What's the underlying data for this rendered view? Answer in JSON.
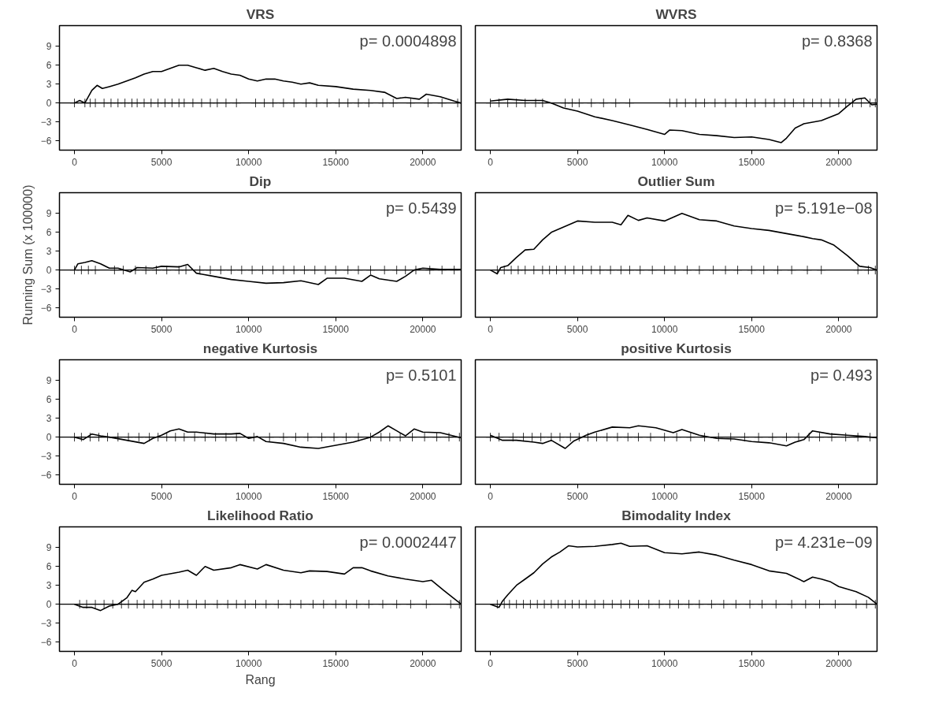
{
  "chart_data": [
    {
      "type": "line",
      "title": "VRS",
      "marker": "cross",
      "annotations": [
        "p= 0.0004898"
      ],
      "xlim": [
        -860,
        22200
      ],
      "ylim": [
        -7.5,
        12.3
      ],
      "xticks": [
        0,
        5000,
        10000,
        15000,
        20000
      ],
      "yticks": [
        -6,
        -3,
        0,
        3,
        6,
        9
      ],
      "ref_lines": [
        {
          "axis": "y",
          "value": 0
        }
      ],
      "series": [
        {
          "color": "#000000",
          "marker": "none",
          "x": [
            0,
            300,
            600,
            800,
            1000,
            1300,
            1600,
            2000,
            2500,
            3000,
            3500,
            4000,
            4500,
            5000,
            5500,
            6000,
            6500,
            7000,
            7500,
            8000,
            8500,
            9000,
            9500,
            10000,
            10500,
            11000,
            11500,
            12000,
            12500,
            13000,
            13500,
            14000,
            15000,
            16000,
            17000,
            17800,
            18500,
            19000,
            19800,
            20200,
            21000,
            21800,
            22200
          ],
          "values": [
            0,
            0.4,
            0,
            1,
            2,
            2.8,
            2.3,
            2.6,
            3,
            3.5,
            4,
            4.6,
            5,
            5,
            5.5,
            6,
            6,
            5.6,
            5.2,
            5.5,
            5,
            4.6,
            4.4,
            3.8,
            3.5,
            3.8,
            3.8,
            3.5,
            3.3,
            3,
            3.2,
            2.8,
            2.6,
            2.2,
            2,
            1.7,
            0.7,
            0.9,
            0.6,
            1.4,
            1,
            0.3,
            0
          ]
        },
        {
          "type": "scatter",
          "color": "#000000",
          "x": [
            0,
            600,
            900,
            1200,
            1700,
            2100,
            2500,
            2900,
            3300,
            3600,
            4000,
            4400,
            4800,
            5200,
            5600,
            6000,
            6300,
            6800,
            7300,
            7800,
            8200,
            8700,
            9300,
            10400,
            10900,
            11400,
            12000,
            12600,
            13300,
            13900,
            14500,
            15200,
            15700,
            16300,
            16900,
            17700,
            18300,
            19300,
            20300,
            21100,
            22000
          ],
          "values": [
            0,
            0,
            0,
            0,
            0,
            0,
            0,
            0,
            0,
            0,
            0,
            0,
            0,
            0,
            0,
            0,
            0,
            0,
            0,
            0,
            0,
            0,
            0,
            0,
            0,
            0,
            0,
            0,
            0,
            0,
            0,
            0,
            0,
            0,
            0,
            0,
            0,
            0,
            0,
            0,
            0
          ]
        }
      ]
    },
    {
      "type": "line",
      "title": "WVRS",
      "marker": "cross",
      "annotations": [
        "p= 0.8368"
      ],
      "tick_labels": "x",
      "xlim": [
        -860,
        22200
      ],
      "ylim": [
        -7.5,
        12.3
      ],
      "xticks": [
        0,
        5000,
        10000,
        15000,
        20000
      ],
      "yticks": [
        -6,
        -3,
        0,
        3,
        6,
        9
      ],
      "ref_lines": [
        {
          "axis": "y",
          "value": 0
        }
      ],
      "series": [
        {
          "color": "#000000",
          "marker": "none",
          "x": [
            0,
            1000,
            2000,
            3000,
            3500,
            4200,
            5000,
            6000,
            7000,
            8000,
            9000,
            10000,
            10300,
            11000,
            12000,
            13000,
            14000,
            15000,
            16000,
            16700,
            17000,
            17500,
            18000,
            19000,
            20000,
            20500,
            21000,
            21500,
            21900,
            22200
          ],
          "values": [
            0.3,
            0.6,
            0.4,
            0.4,
            0,
            -0.8,
            -1.3,
            -2.2,
            -2.8,
            -3.5,
            -4.2,
            -5,
            -4.3,
            -4.4,
            -5,
            -5.2,
            -5.5,
            -5.4,
            -5.8,
            -6.3,
            -5.6,
            -4,
            -3.3,
            -2.8,
            -1.7,
            -0.5,
            0.6,
            0.8,
            -0.3,
            -0.2
          ]
        },
        {
          "type": "scatter",
          "color": "#000000",
          "x": [
            0,
            500,
            1000,
            1500,
            2000,
            2600,
            3000,
            4300,
            4700,
            5100,
            5800,
            6500,
            7200,
            8000,
            10300,
            10700,
            11200,
            11800,
            12300,
            12900,
            13500,
            14100,
            14700,
            15200,
            15800,
            16300,
            16900,
            17400,
            18000,
            18500,
            19000,
            19500,
            20000,
            20400,
            20800,
            21300,
            21800,
            22100
          ],
          "values": [
            0,
            0,
            0,
            0,
            0,
            0,
            0,
            0,
            0,
            0,
            0,
            0,
            0,
            0,
            0,
            0,
            0,
            0,
            0,
            0,
            0,
            0,
            0,
            0,
            0,
            0,
            0,
            0,
            0,
            0,
            0,
            0,
            0,
            0,
            0,
            0,
            0,
            0
          ]
        }
      ]
    },
    {
      "type": "line",
      "title": "Dip",
      "ylabel": "Running Sum (x 100000)",
      "marker": "cross",
      "annotations": [
        "p= 0.5439"
      ],
      "xlim": [
        -860,
        22200
      ],
      "ylim": [
        -7.5,
        12.3
      ],
      "xticks": [
        0,
        5000,
        10000,
        15000,
        20000
      ],
      "yticks": [
        -6,
        -3,
        0,
        3,
        6,
        9
      ],
      "ref_lines": [
        {
          "axis": "y",
          "value": 0
        }
      ],
      "series": [
        {
          "color": "#000000",
          "marker": "none",
          "x": [
            0,
            200,
            600,
            1000,
            1500,
            2000,
            2500,
            3200,
            3600,
            4500,
            5000,
            6000,
            6500,
            7000,
            8000,
            9000,
            10000,
            11000,
            12000,
            13000,
            14000,
            14500,
            15500,
            16500,
            17000,
            17500,
            18500,
            19000,
            19500,
            20000,
            21000,
            22200
          ],
          "values": [
            0,
            1,
            1.2,
            1.5,
            1,
            0.3,
            0.3,
            -0.3,
            0.4,
            0.3,
            0.6,
            0.5,
            0.9,
            -0.5,
            -1,
            -1.5,
            -1.8,
            -2.1,
            -2,
            -1.7,
            -2.3,
            -1.3,
            -1.3,
            -1.8,
            -0.8,
            -1.4,
            -1.8,
            -1,
            0,
            0.3,
            0.1,
            0.1
          ]
        },
        {
          "type": "scatter",
          "color": "#000000",
          "x": [
            0,
            400,
            800,
            1200,
            2300,
            2800,
            3500,
            4100,
            4700,
            5300,
            6000,
            6400,
            7200,
            7800,
            8400,
            9000,
            9600,
            10200,
            10800,
            11400,
            12000,
            12600,
            13200,
            13800,
            14400,
            15000,
            15700,
            16300,
            17000,
            17800,
            18500,
            19000,
            19600,
            20400,
            21100,
            21800
          ],
          "values": [
            0,
            0,
            0,
            0,
            0,
            0,
            0,
            0,
            0,
            0,
            0,
            0,
            0,
            0,
            0,
            0,
            0,
            0,
            0,
            0,
            0,
            0,
            0,
            0,
            0,
            0,
            0,
            0,
            0,
            0,
            0,
            0,
            0,
            0,
            0,
            0
          ]
        }
      ]
    },
    {
      "type": "line",
      "title": "Outlier Sum",
      "marker": "cross",
      "annotations": [
        "p= 5.191e−08"
      ],
      "tick_labels": "x",
      "xlim": [
        -860,
        22200
      ],
      "ylim": [
        -7.5,
        12.3
      ],
      "xticks": [
        0,
        5000,
        10000,
        15000,
        20000
      ],
      "yticks": [
        -6,
        -3,
        0,
        3,
        6,
        9
      ],
      "ref_lines": [
        {
          "axis": "y",
          "value": 0
        }
      ],
      "series": [
        {
          "color": "#000000",
          "marker": "none",
          "x": [
            0,
            400,
            600,
            1000,
            1500,
            2000,
            2500,
            3000,
            3500,
            4000,
            4500,
            5000,
            6000,
            7000,
            7500,
            7900,
            8500,
            9000,
            10000,
            11000,
            12000,
            13000,
            14000,
            15000,
            16000,
            17000,
            18000,
            18500,
            19000,
            19700,
            20500,
            21200,
            21800,
            22200
          ],
          "values": [
            0,
            -0.6,
            0.4,
            0.7,
            2,
            3.2,
            3.3,
            4.8,
            6,
            6.6,
            7.2,
            7.8,
            7.6,
            7.6,
            7.2,
            8.7,
            7.9,
            8.3,
            7.8,
            9,
            8,
            7.8,
            7,
            6.6,
            6.3,
            5.8,
            5.3,
            5,
            4.8,
            4,
            2.3,
            0.6,
            0.4,
            0
          ]
        },
        {
          "type": "scatter",
          "color": "#000000",
          "x": [
            400,
            800,
            1200,
            1600,
            2000,
            2500,
            3000,
            3400,
            3800,
            4300,
            4800,
            5300,
            5800,
            6300,
            6900,
            7500,
            8000,
            8600,
            9300,
            10000,
            10600,
            11300,
            12000,
            12800,
            13500,
            14200,
            15000,
            15700,
            16500,
            17300,
            18200,
            19000,
            21100,
            21700,
            22100
          ],
          "values": [
            0,
            0,
            0,
            0,
            0,
            0,
            0,
            0,
            0,
            0,
            0,
            0,
            0,
            0,
            0,
            0,
            0,
            0,
            0,
            0,
            0,
            0,
            0,
            0,
            0,
            0,
            0,
            0,
            0,
            0,
            0,
            0,
            0,
            0,
            0
          ]
        }
      ]
    },
    {
      "type": "line",
      "title": "negative Kurtosis",
      "marker": "cross",
      "annotations": [
        "p= 0.5101"
      ],
      "xlim": [
        -860,
        22200
      ],
      "ylim": [
        -7.5,
        12.3
      ],
      "xticks": [
        0,
        5000,
        10000,
        15000,
        20000
      ],
      "yticks": [
        -6,
        -3,
        0,
        3,
        6,
        9
      ],
      "ref_lines": [
        {
          "axis": "y",
          "value": 0
        }
      ],
      "series": [
        {
          "color": "#000000",
          "marker": "none",
          "x": [
            0,
            500,
            1000,
            1500,
            2000,
            3000,
            4000,
            4500,
            5000,
            5500,
            6000,
            6500,
            7000,
            8000,
            9000,
            9500,
            10000,
            10500,
            11000,
            12000,
            13000,
            14000,
            15000,
            16000,
            17000,
            17500,
            18000,
            18500,
            19000,
            19500,
            20000,
            21000,
            22200
          ],
          "values": [
            0,
            -0.4,
            0.5,
            0.2,
            0,
            -0.5,
            -1,
            -0.2,
            0.3,
            1,
            1.3,
            0.8,
            0.8,
            0.5,
            0.5,
            0.6,
            -0.2,
            0.1,
            -0.7,
            -1,
            -1.6,
            -1.8,
            -1.3,
            -0.8,
            0,
            0.8,
            1.8,
            1,
            0.2,
            1.3,
            0.8,
            0.7,
            -0.1
          ]
        },
        {
          "type": "scatter",
          "color": "#000000",
          "x": [
            0,
            400,
            900,
            1400,
            1900,
            2500,
            3100,
            3700,
            4300,
            4800,
            5300,
            5800,
            6300,
            6900,
            7500,
            8100,
            8700,
            9300,
            10300,
            11200,
            12000,
            12700,
            13400,
            14200,
            14900,
            15600,
            16300,
            17000,
            17600,
            18100,
            18700,
            19400,
            20100,
            20800,
            21500,
            22100
          ],
          "values": [
            0,
            0,
            0,
            0,
            0,
            0,
            0,
            0,
            0,
            0,
            0,
            0,
            0,
            0,
            0,
            0,
            0,
            0,
            0,
            0,
            0,
            0,
            0,
            0,
            0,
            0,
            0,
            0,
            0,
            0,
            0,
            0,
            0,
            0,
            0,
            0
          ]
        }
      ]
    },
    {
      "type": "line",
      "title": "positive Kurtosis",
      "marker": "cross",
      "annotations": [
        "p= 0.493"
      ],
      "tick_labels": "x",
      "xlim": [
        -860,
        22200
      ],
      "ylim": [
        -7.5,
        12.3
      ],
      "xticks": [
        0,
        5000,
        10000,
        15000,
        20000
      ],
      "yticks": [
        -6,
        -3,
        0,
        3,
        6,
        9
      ],
      "ref_lines": [
        {
          "axis": "y",
          "value": 0
        }
      ],
      "series": [
        {
          "color": "#000000",
          "marker": "none",
          "x": [
            0,
            700,
            1500,
            2500,
            3000,
            3500,
            4300,
            4800,
            5500,
            6000,
            7000,
            8000,
            8500,
            9500,
            10500,
            11000,
            12000,
            13000,
            14000,
            15000,
            16000,
            17000,
            17500,
            18000,
            18500,
            19500,
            20500,
            21500,
            22200
          ],
          "values": [
            0.3,
            -0.5,
            -0.5,
            -0.8,
            -1,
            -0.5,
            -1.8,
            -0.6,
            0.3,
            0.8,
            1.6,
            1.5,
            1.8,
            1.5,
            0.7,
            1.2,
            0.3,
            -0.2,
            -0.3,
            -0.7,
            -0.9,
            -1.4,
            -0.8,
            -0.4,
            1,
            0.5,
            0.3,
            0.1,
            -0.1
          ]
        },
        {
          "type": "scatter",
          "color": "#000000",
          "x": [
            0,
            500,
            1300,
            1900,
            2400,
            2900,
            3500,
            4000,
            4600,
            5100,
            5600,
            6100,
            6700,
            7300,
            7900,
            8500,
            9200,
            10000,
            10700,
            11500,
            12300,
            13100,
            13800,
            14600,
            15400,
            16200,
            17000,
            17700,
            18300,
            18900,
            19600,
            20400,
            21100,
            21800
          ],
          "values": [
            0,
            0,
            0,
            0,
            0,
            0,
            0,
            0,
            0,
            0,
            0,
            0,
            0,
            0,
            0,
            0,
            0,
            0,
            0,
            0,
            0,
            0,
            0,
            0,
            0,
            0,
            0,
            0,
            0,
            0,
            0,
            0,
            0,
            0
          ]
        }
      ]
    },
    {
      "type": "line",
      "title": "Likelihood Ratio",
      "xlabel": "Rang",
      "marker": "cross",
      "annotations": [
        "p= 0.0002447"
      ],
      "xlim": [
        -860,
        22200
      ],
      "ylim": [
        -7.5,
        12.3
      ],
      "xticks": [
        0,
        5000,
        10000,
        15000,
        20000
      ],
      "yticks": [
        -6,
        -3,
        0,
        3,
        6,
        9
      ],
      "ref_lines": [
        {
          "axis": "y",
          "value": 0
        }
      ],
      "series": [
        {
          "color": "#000000",
          "marker": "none",
          "x": [
            0,
            500,
            1000,
            1500,
            2000,
            2500,
            3000,
            3300,
            3500,
            4000,
            4500,
            5000,
            6000,
            6500,
            7000,
            7500,
            8000,
            9000,
            9500,
            10500,
            11000,
            12000,
            13000,
            13500,
            14500,
            15500,
            16000,
            16500,
            17000,
            18000,
            19000,
            20000,
            20500,
            21200,
            22200
          ],
          "values": [
            0,
            -0.5,
            -0.5,
            -1,
            -0.3,
            0,
            1,
            2.2,
            2,
            3.5,
            4,
            4.6,
            5.1,
            5.4,
            4.6,
            6,
            5.4,
            5.8,
            6.3,
            5.6,
            6.3,
            5.4,
            5,
            5.3,
            5.2,
            4.8,
            5.8,
            5.8,
            5.3,
            4.5,
            4,
            3.6,
            3.8,
            2.2,
            0
          ]
        },
        {
          "type": "scatter",
          "color": "#000000",
          "x": [
            300,
            700,
            1200,
            1700,
            2200,
            2700,
            3100,
            3600,
            4000,
            4500,
            5000,
            5500,
            6000,
            6500,
            7000,
            7500,
            8200,
            8800,
            9300,
            9800,
            10400,
            11000,
            11700,
            12400,
            13000,
            13700,
            14300,
            15000,
            15600,
            16200,
            16900,
            17700,
            18500,
            19300,
            20200,
            21600,
            22100
          ],
          "values": [
            0,
            0,
            0,
            0,
            0,
            0,
            0,
            0,
            0,
            0,
            0,
            0,
            0,
            0,
            0,
            0,
            0,
            0,
            0,
            0,
            0,
            0,
            0,
            0,
            0,
            0,
            0,
            0,
            0,
            0,
            0,
            0,
            0,
            0,
            0,
            0,
            0
          ]
        }
      ]
    },
    {
      "type": "line",
      "title": "Bimodality Index",
      "marker": "cross",
      "annotations": [
        "p= 4.231e−09"
      ],
      "tick_labels": "x",
      "xlim": [
        -860,
        22200
      ],
      "ylim": [
        -7.5,
        12.3
      ],
      "xticks": [
        0,
        5000,
        10000,
        15000,
        20000
      ],
      "yticks": [
        -6,
        -3,
        0,
        3,
        6,
        9
      ],
      "ref_lines": [
        {
          "axis": "y",
          "value": 0
        }
      ],
      "series": [
        {
          "color": "#000000",
          "marker": "none",
          "x": [
            0,
            500,
            700,
            1000,
            1500,
            2000,
            2500,
            3000,
            3500,
            4000,
            4500,
            5000,
            6000,
            7000,
            7500,
            8000,
            9000,
            10000,
            11000,
            12000,
            13000,
            14000,
            15000,
            16000,
            17000,
            18000,
            18500,
            19000,
            19500,
            20000,
            21000,
            21700,
            22200
          ],
          "values": [
            0,
            -0.5,
            0.5,
            1.5,
            3,
            4,
            5,
            6.4,
            7.5,
            8.3,
            9.3,
            9.1,
            9.2,
            9.5,
            9.7,
            9.2,
            9.3,
            8.2,
            8,
            8.3,
            7.8,
            7,
            6.3,
            5.3,
            4.9,
            3.6,
            4.3,
            4,
            3.6,
            2.8,
            2,
            1.1,
            0
          ]
        },
        {
          "type": "scatter",
          "color": "#000000",
          "x": [
            400,
            800,
            1100,
            1500,
            1900,
            2300,
            2700,
            3100,
            3500,
            3900,
            4300,
            4700,
            5100,
            5500,
            6000,
            6500,
            7000,
            7500,
            8000,
            8500,
            9100,
            9700,
            10300,
            10800,
            11400,
            12000,
            12700,
            13400,
            14100,
            14900,
            15600,
            16400,
            17300,
            18100,
            18900,
            19800,
            21000,
            21600,
            22100
          ],
          "values": [
            0,
            0,
            0,
            0,
            0,
            0,
            0,
            0,
            0,
            0,
            0,
            0,
            0,
            0,
            0,
            0,
            0,
            0,
            0,
            0,
            0,
            0,
            0,
            0,
            0,
            0,
            0,
            0,
            0,
            0,
            0,
            0,
            0,
            0,
            0,
            0,
            0,
            0,
            0
          ]
        }
      ]
    }
  ]
}
